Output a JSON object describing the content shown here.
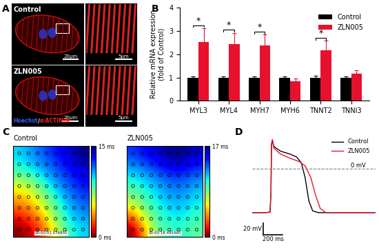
{
  "panel_labels": [
    "A",
    "B",
    "C",
    "D"
  ],
  "micrographs": {
    "rows": [
      "Control",
      "ZLN005"
    ],
    "scale_bars": [
      "20μm",
      "5μm"
    ],
    "stain": [
      {
        "text": "Hoechst",
        "color": "#3a5bff"
      },
      {
        "text": "/",
        "color": "#ffffff"
      },
      {
        "text": "α-ACTININ",
        "color": "#ff2020"
      }
    ]
  },
  "chart_data": [
    {
      "type": "bar",
      "categories": [
        "MYL3",
        "MYL4",
        "MYH7",
        "MYH6",
        "TNNT2",
        "TNNI3"
      ],
      "series": [
        {
          "name": "Control",
          "color": "#000000",
          "values": [
            1.0,
            1.0,
            1.0,
            1.0,
            1.0,
            1.0
          ],
          "errors": [
            0.06,
            0.05,
            0.04,
            0.06,
            0.07,
            0.05
          ]
        },
        {
          "name": "ZLN005",
          "color": "#e8112d",
          "values": [
            2.52,
            2.42,
            2.37,
            0.83,
            2.18,
            1.15
          ],
          "errors": [
            0.6,
            0.5,
            0.48,
            0.12,
            0.4,
            0.15
          ]
        }
      ],
      "y_label": "Relative mRNA expression\n(fold of Control)",
      "ylim": [
        0,
        4
      ],
      "yticks": [
        0,
        1,
        2,
        3,
        4
      ],
      "legend": "upper right",
      "significance": {
        "categories": [
          "MYL3",
          "MYL4",
          "MYH7",
          "TNNT2"
        ],
        "label": "*"
      }
    },
    {
      "type": "line",
      "series": [
        {
          "name": "Control",
          "color": "#000000",
          "x": [
            0,
            150,
            190,
            200,
            205,
            215,
            230,
            300,
            400,
            470,
            520,
            560,
            600,
            640,
            700,
            900,
            1300
          ],
          "values": [
            -75,
            -75,
            -74,
            -40,
            40,
            48,
            38,
            30,
            25,
            20,
            10,
            -15,
            -55,
            -72,
            -75,
            -75,
            -75
          ]
        },
        {
          "name": "ZLN005",
          "color": "#e8112d",
          "x": [
            0,
            150,
            190,
            200,
            205,
            215,
            230,
            300,
            400,
            500,
            560,
            620,
            670,
            720,
            780,
            900,
            1300
          ],
          "values": [
            -75,
            -75,
            -74,
            -40,
            42,
            50,
            35,
            25,
            18,
            12,
            5,
            -15,
            -45,
            -68,
            -75,
            -75,
            -75
          ]
        }
      ],
      "xlim": [
        0,
        1300
      ],
      "ylim": [
        -125,
        60
      ],
      "tick_labels": false,
      "legend": "upper right",
      "reference_line": {
        "value": 0,
        "label": "0 mV"
      },
      "scale_bars": {
        "x": {
          "value": 200,
          "label": "200 ms"
        },
        "y": {
          "value": 20,
          "label": "20 mV"
        }
      }
    }
  ],
  "activation_maps": [
    {
      "title": "Control",
      "timestamp": "00:00:01.576850",
      "cells": [
        [
          10,
          11,
          12,
          13,
          14,
          15
        ],
        [
          9,
          10,
          11,
          12,
          13,
          14
        ],
        [
          6,
          7,
          9,
          11,
          12,
          13
        ],
        [
          4,
          5,
          7,
          9,
          11,
          12
        ],
        [
          2,
          3,
          5,
          8,
          10,
          11
        ],
        [
          0,
          1,
          3,
          6,
          9,
          10
        ]
      ],
      "colorbar_range": [
        0,
        15
      ],
      "colorbar_ticks": [
        {
          "value": 0,
          "label": "0 ms"
        },
        {
          "value": 15,
          "label": "15 ms"
        }
      ]
    },
    {
      "title": "ZLN005",
      "timestamp": "00:00:18.495460",
      "cells": [
        [
          14,
          15,
          16,
          17,
          17,
          16
        ],
        [
          12,
          13,
          14,
          15,
          15,
          14
        ],
        [
          10,
          11,
          12,
          13,
          13,
          12
        ],
        [
          8,
          10,
          11,
          12,
          12,
          11
        ],
        [
          4,
          8,
          10,
          11,
          11,
          10
        ],
        [
          0,
          5,
          9,
          10,
          10,
          9
        ]
      ],
      "colorbar_range": [
        0,
        17
      ],
      "colorbar_ticks": [
        {
          "value": 0,
          "label": "0 ms"
        },
        {
          "value": 17,
          "label": "17 ms"
        }
      ]
    }
  ]
}
